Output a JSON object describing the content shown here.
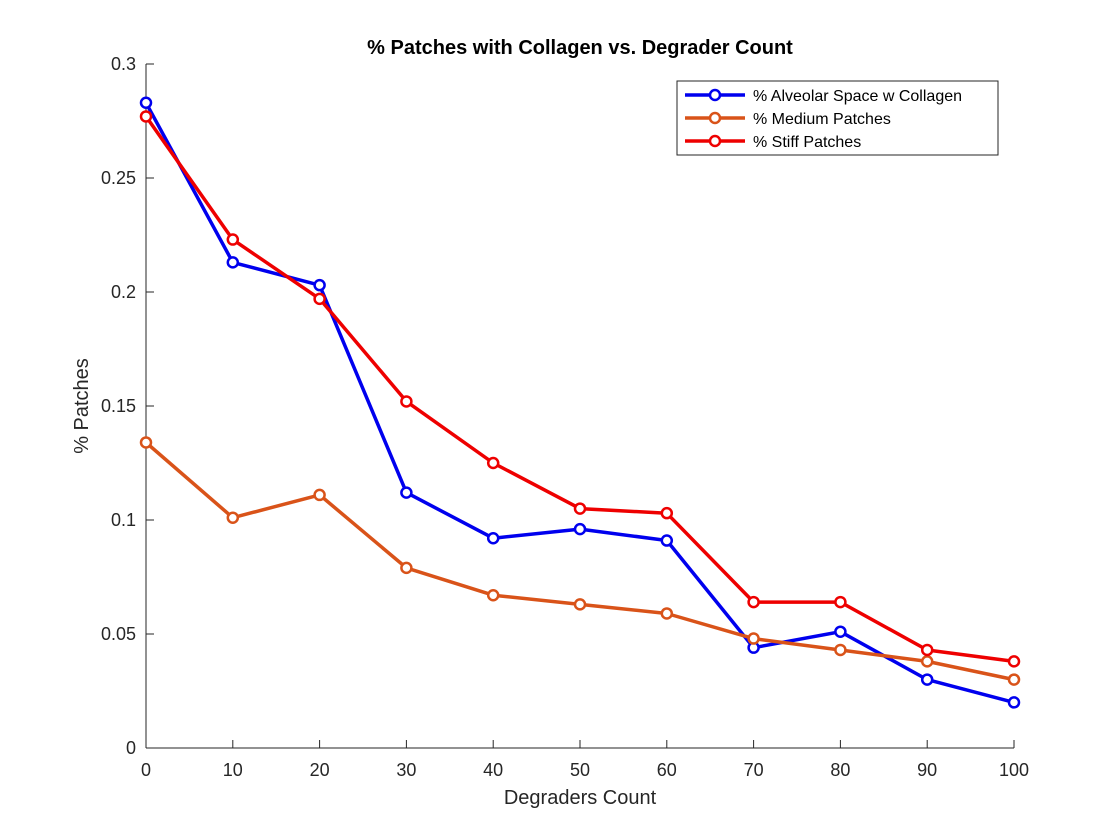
{
  "chart_data": {
    "type": "line",
    "title": "% Patches with Collagen vs. Degrader Count",
    "xlabel": "Degraders Count",
    "ylabel": "% Patches",
    "x": [
      0,
      10,
      20,
      30,
      40,
      50,
      60,
      70,
      80,
      90,
      100
    ],
    "xlim": [
      0,
      100
    ],
    "ylim": [
      0,
      0.3
    ],
    "xticks": [
      "0",
      "10",
      "20",
      "30",
      "40",
      "50",
      "60",
      "70",
      "80",
      "90",
      "100"
    ],
    "yticks": [
      "0",
      "0.05",
      "0.1",
      "0.15",
      "0.2",
      "0.25",
      "0.3"
    ],
    "grid": false,
    "legend_position": "top-right",
    "series": [
      {
        "name": "% Alveolar Space w Collagen",
        "color": "#0000ee",
        "values": [
          0.283,
          0.213,
          0.203,
          0.112,
          0.092,
          0.096,
          0.091,
          0.044,
          0.051,
          0.03,
          0.02
        ]
      },
      {
        "name": "% Medium Patches",
        "color": "#d95319",
        "values": [
          0.134,
          0.101,
          0.111,
          0.079,
          0.067,
          0.063,
          0.059,
          0.048,
          0.043,
          0.038,
          0.03
        ]
      },
      {
        "name": "% Stiff Patches",
        "color": "#ee0000",
        "values": [
          0.277,
          0.223,
          0.197,
          0.152,
          0.125,
          0.105,
          0.103,
          0.064,
          0.064,
          0.043,
          0.038
        ]
      }
    ]
  }
}
